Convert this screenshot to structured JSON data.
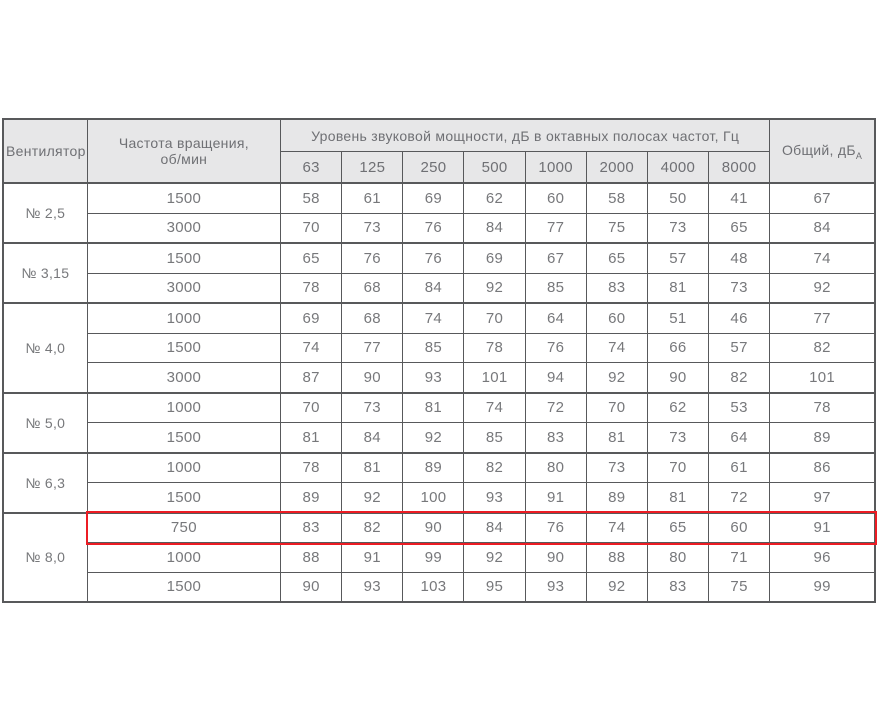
{
  "table": {
    "col1_header": "Вентилятор",
    "col2_header": "Частота вращения,\nоб/мин",
    "band_header": "Уровень звуковой мощности, дБ в октавных полосах частот, Гц",
    "total_header": "Общий, дБ",
    "total_header_sub": "А",
    "freq_columns": [
      "63",
      "125",
      "250",
      "500",
      "1000",
      "2000",
      "4000",
      "8000"
    ],
    "groups": [
      {
        "fan": "№ 2,5",
        "rows": [
          {
            "rpm": "1500",
            "values": [
              58,
              61,
              69,
              62,
              60,
              58,
              50,
              41
            ],
            "total": 67
          },
          {
            "rpm": "3000",
            "values": [
              70,
              73,
              76,
              84,
              77,
              75,
              73,
              65
            ],
            "total": 84
          }
        ]
      },
      {
        "fan": "№ 3,15",
        "rows": [
          {
            "rpm": "1500",
            "values": [
              65,
              76,
              76,
              69,
              67,
              65,
              57,
              48
            ],
            "total": 74
          },
          {
            "rpm": "3000",
            "values": [
              78,
              68,
              84,
              92,
              85,
              83,
              81,
              73
            ],
            "total": 92
          }
        ]
      },
      {
        "fan": "№ 4,0",
        "rows": [
          {
            "rpm": "1000",
            "values": [
              69,
              68,
              74,
              70,
              64,
              60,
              51,
              46
            ],
            "total": 77
          },
          {
            "rpm": "1500",
            "values": [
              74,
              77,
              85,
              78,
              76,
              74,
              66,
              57
            ],
            "total": 82
          },
          {
            "rpm": "3000",
            "values": [
              87,
              90,
              93,
              101,
              94,
              92,
              90,
              82
            ],
            "total": 101
          }
        ]
      },
      {
        "fan": "№ 5,0",
        "rows": [
          {
            "rpm": "1000",
            "values": [
              70,
              73,
              81,
              74,
              72,
              70,
              62,
              53
            ],
            "total": 78
          },
          {
            "rpm": "1500",
            "values": [
              81,
              84,
              92,
              85,
              83,
              81,
              73,
              64
            ],
            "total": 89
          }
        ]
      },
      {
        "fan": "№ 6,3",
        "rows": [
          {
            "rpm": "1000",
            "values": [
              78,
              81,
              89,
              82,
              80,
              73,
              70,
              61
            ],
            "total": 86
          },
          {
            "rpm": "1500",
            "values": [
              89,
              92,
              100,
              93,
              91,
              89,
              81,
              72
            ],
            "total": 97
          }
        ]
      },
      {
        "fan": "№ 8,0",
        "rows": [
          {
            "rpm": "750",
            "values": [
              83,
              82,
              90,
              84,
              76,
              74,
              65,
              60
            ],
            "total": 91,
            "highlighted": true
          },
          {
            "rpm": "1000",
            "values": [
              88,
              91,
              99,
              92,
              90,
              88,
              80,
              71
            ],
            "total": 96
          },
          {
            "rpm": "1500",
            "values": [
              90,
              93,
              103,
              95,
              93,
              92,
              83,
              75
            ],
            "total": 99
          }
        ]
      }
    ],
    "colors": {
      "header_bg": "#e7e7e8",
      "border": "#58595b",
      "text": "#77787b",
      "highlight": "#ec1c24"
    }
  }
}
